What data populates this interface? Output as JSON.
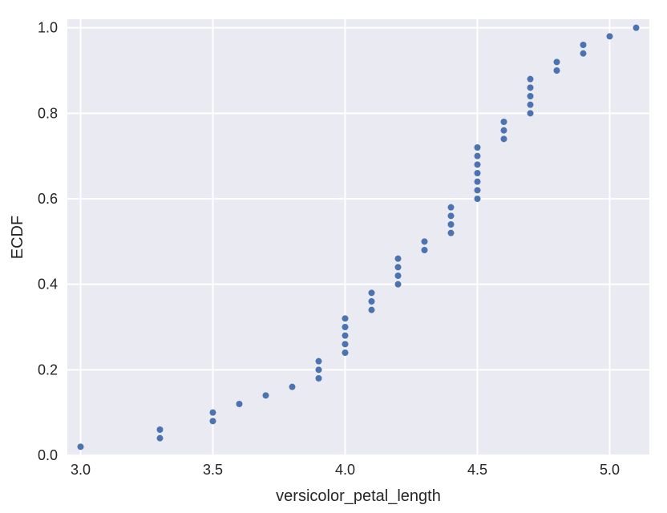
{
  "chart_data": {
    "type": "scatter",
    "xlabel": "versicolor_petal_length",
    "ylabel": "ECDF",
    "xlim": [
      2.95,
      5.15
    ],
    "ylim": [
      0.0,
      1.02
    ],
    "x_ticks": [
      "3.0",
      "3.5",
      "4.0",
      "4.5",
      "5.0"
    ],
    "y_ticks": [
      "0.0",
      "0.2",
      "0.4",
      "0.6",
      "0.8",
      "1.0"
    ],
    "grid": true,
    "background_color": "#eaeaf2",
    "point_color": "#4c72b0",
    "series": [
      {
        "x": [
          3.0,
          3.3,
          3.3,
          3.5,
          3.5,
          3.6,
          3.7,
          3.8,
          3.9,
          3.9,
          3.9,
          4.0,
          4.0,
          4.0,
          4.0,
          4.0,
          4.1,
          4.1,
          4.1,
          4.2,
          4.2,
          4.2,
          4.2,
          4.3,
          4.3,
          4.4,
          4.4,
          4.4,
          4.4,
          4.5,
          4.5,
          4.5,
          4.5,
          4.5,
          4.5,
          4.5,
          4.6,
          4.6,
          4.6,
          4.7,
          4.7,
          4.7,
          4.7,
          4.7,
          4.8,
          4.8,
          4.9,
          4.9,
          5.0,
          5.1
        ],
        "y": [
          0.02,
          0.04,
          0.06,
          0.08,
          0.1,
          0.12,
          0.14,
          0.16,
          0.18,
          0.2,
          0.22,
          0.24,
          0.26,
          0.28,
          0.3,
          0.32,
          0.34,
          0.36,
          0.38,
          0.4,
          0.42,
          0.44,
          0.46,
          0.48,
          0.5,
          0.52,
          0.54,
          0.56,
          0.58,
          0.6,
          0.62,
          0.64,
          0.66,
          0.68,
          0.7,
          0.72,
          0.74,
          0.76,
          0.78,
          0.8,
          0.82,
          0.84,
          0.86,
          0.88,
          0.9,
          0.92,
          0.94,
          0.96,
          0.98,
          1.0
        ]
      }
    ]
  }
}
